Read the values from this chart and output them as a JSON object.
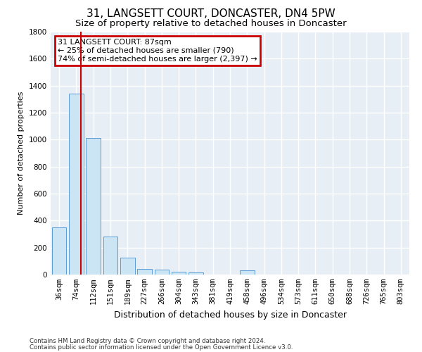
{
  "title1": "31, LANGSETT COURT, DONCASTER, DN4 5PW",
  "title2": "Size of property relative to detached houses in Doncaster",
  "xlabel": "Distribution of detached houses by size in Doncaster",
  "ylabel": "Number of detached properties",
  "categories": [
    "36sqm",
    "74sqm",
    "112sqm",
    "151sqm",
    "189sqm",
    "227sqm",
    "266sqm",
    "304sqm",
    "343sqm",
    "381sqm",
    "419sqm",
    "458sqm",
    "496sqm",
    "534sqm",
    "573sqm",
    "611sqm",
    "650sqm",
    "688sqm",
    "726sqm",
    "765sqm",
    "803sqm"
  ],
  "values": [
    350,
    1340,
    1010,
    280,
    125,
    40,
    35,
    22,
    16,
    0,
    0,
    30,
    0,
    0,
    0,
    0,
    0,
    0,
    0,
    0,
    0
  ],
  "bar_color": "#cce5f5",
  "bar_edgecolor": "#5b9bd5",
  "vline_x": 1.25,
  "vline_color": "#cc0000",
  "ylim": [
    0,
    1800
  ],
  "yticks": [
    0,
    200,
    400,
    600,
    800,
    1000,
    1200,
    1400,
    1600,
    1800
  ],
  "annotation_text": "31 LANGSETT COURT: 87sqm\n← 25% of detached houses are smaller (790)\n74% of semi-detached houses are larger (2,397) →",
  "footer1": "Contains HM Land Registry data © Crown copyright and database right 2024.",
  "footer2": "Contains public sector information licensed under the Open Government Licence v3.0.",
  "background_color": "#ffffff",
  "plot_bg_color": "#e8eef5",
  "grid_color": "#ffffff",
  "ann_box_color": "#cc0000",
  "title1_fontsize": 11,
  "title2_fontsize": 9.5,
  "xlabel_fontsize": 9,
  "ylabel_fontsize": 8,
  "tick_fontsize": 7.5,
  "bar_width": 0.85
}
